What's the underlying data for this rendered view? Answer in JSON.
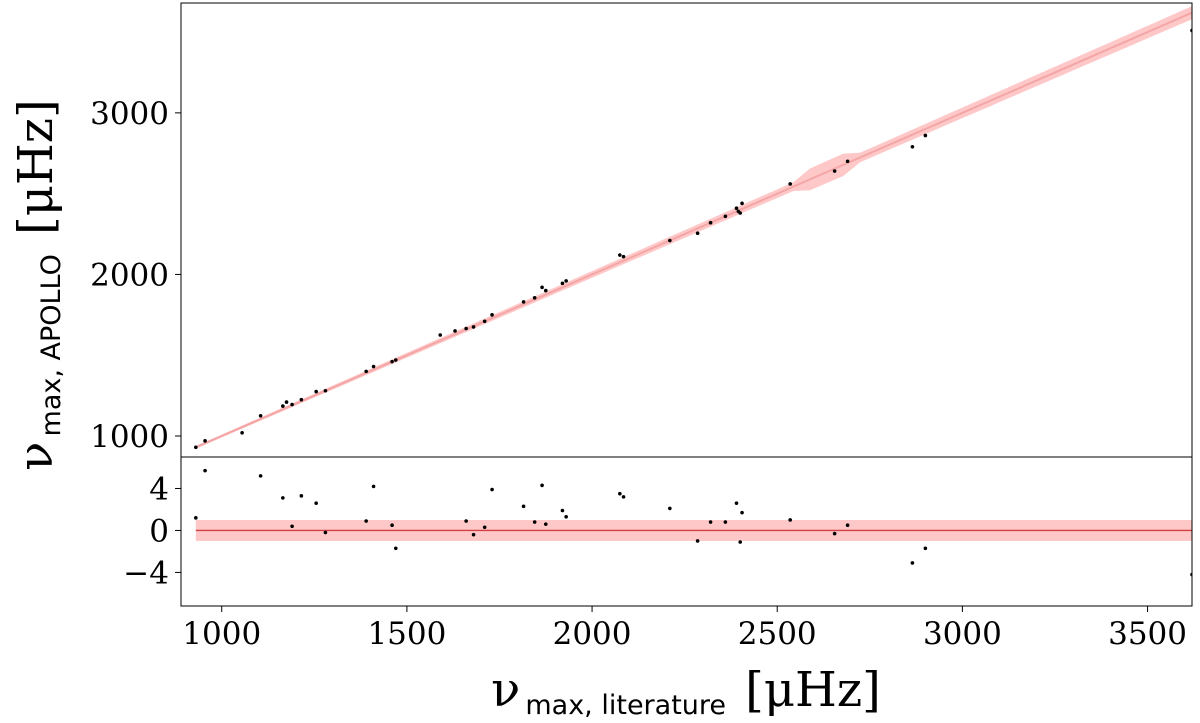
{
  "chart_data": {
    "type": "scatter",
    "x_range": [
      890,
      3620
    ],
    "top_panel": {
      "ylim": [
        870,
        3680
      ],
      "yticks": [
        1000,
        2000,
        3000
      ],
      "ytick_labels": [
        "1000",
        "2000",
        "3000"
      ],
      "ylabel_symbol": "ν",
      "ylabel_subscript": "max, APOLLO",
      "ylabel_unit": "[μHz]",
      "fit_line_x": [
        930,
        3620
      ],
      "fit_color": "#f4a6a6",
      "band_color": "#ffc8c8",
      "points_x": [
        930,
        955,
        1055,
        1105,
        1165,
        1175,
        1190,
        1215,
        1255,
        1280,
        1390,
        1410,
        1460,
        1470,
        1590,
        1630,
        1660,
        1680,
        1710,
        1730,
        1815,
        1845,
        1865,
        1875,
        1920,
        1930,
        2075,
        2085,
        2210,
        2285,
        2320,
        2360,
        2390,
        2395,
        2400,
        2405,
        2535,
        2655,
        2690,
        2865,
        2900,
        3620
      ],
      "points_y": [
        930,
        970,
        1020,
        1125,
        1185,
        1210,
        1195,
        1225,
        1275,
        1280,
        1400,
        1430,
        1460,
        1470,
        1625,
        1650,
        1665,
        1675,
        1710,
        1750,
        1830,
        1855,
        1920,
        1900,
        1945,
        1960,
        2120,
        2110,
        2210,
        2255,
        2320,
        2360,
        2410,
        2390,
        2380,
        2440,
        2560,
        2640,
        2700,
        2790,
        2860,
        3510
      ]
    },
    "bottom_panel": {
      "ylim": [
        -7.2,
        7.0
      ],
      "yticks": [
        4,
        0,
        -4
      ],
      "ytick_labels": [
        "4",
        "0",
        "−4"
      ],
      "residual_band": [
        -1.0,
        1.0
      ],
      "band_color": "#ffc8c8",
      "center_line_color": "#d04040",
      "points_x": [
        930,
        955,
        1105,
        1165,
        1190,
        1215,
        1255,
        1280,
        1390,
        1410,
        1460,
        1470,
        1660,
        1680,
        1710,
        1730,
        1815,
        1845,
        1865,
        1875,
        1920,
        1930,
        2075,
        2085,
        2210,
        2285,
        2320,
        2360,
        2390,
        2400,
        2405,
        2535,
        2655,
        2690,
        2865,
        2900,
        3620
      ],
      "points_y": [
        1.2,
        5.7,
        5.2,
        3.1,
        0.4,
        3.3,
        2.6,
        -0.2,
        0.9,
        4.2,
        0.5,
        -1.7,
        0.9,
        -0.4,
        0.3,
        3.9,
        2.3,
        0.8,
        4.3,
        0.6,
        1.9,
        1.3,
        3.5,
        3.2,
        2.1,
        -1.0,
        0.8,
        0.8,
        2.6,
        -1.1,
        1.7,
        1.0,
        -0.3,
        0.5,
        -3.1,
        -1.7,
        -4.2
      ]
    },
    "xticks": [
      1000,
      1500,
      2000,
      2500,
      3000,
      3500
    ],
    "xtick_labels": [
      "1000",
      "1500",
      "2000",
      "2500",
      "3000",
      "3500"
    ],
    "xlabel_symbol": "ν",
    "xlabel_subscript": "max, literature",
    "xlabel_unit": "[μHz]"
  }
}
